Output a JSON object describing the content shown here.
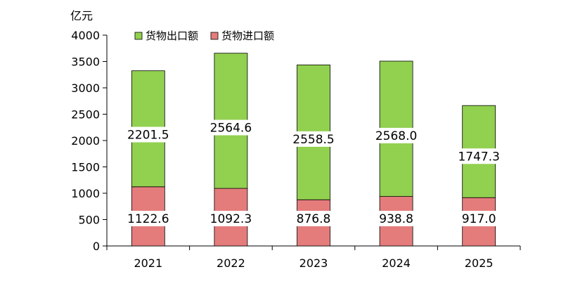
{
  "chart_data": {
    "type": "bar",
    "stacked": true,
    "unit_label": "亿元",
    "title": "",
    "xlabel": "",
    "ylabel": "",
    "categories": [
      "2021",
      "2022",
      "2023",
      "2024",
      "2025"
    ],
    "series": [
      {
        "name": "货物进口额",
        "values": [
          1122.6,
          1092.3,
          876.8,
          938.8,
          917.0
        ],
        "labels": [
          "1122.6",
          "1092.3",
          "876.8",
          "938.8",
          "917.0"
        ],
        "color": "#e57c7c"
      },
      {
        "name": "货物出口额",
        "values": [
          2201.5,
          2564.6,
          2558.5,
          2568.0,
          1747.3
        ],
        "labels": [
          "2201.5",
          "2564.6",
          "2558.5",
          "2568.0",
          "1747.3"
        ],
        "color": "#92d050"
      }
    ],
    "legend_order": [
      1,
      0
    ],
    "legend_position": "top-left",
    "ylim": [
      0,
      4000
    ],
    "yticks": [
      0,
      500,
      1000,
      1500,
      2000,
      2500,
      3000,
      3500,
      4000
    ],
    "grid": false
  }
}
